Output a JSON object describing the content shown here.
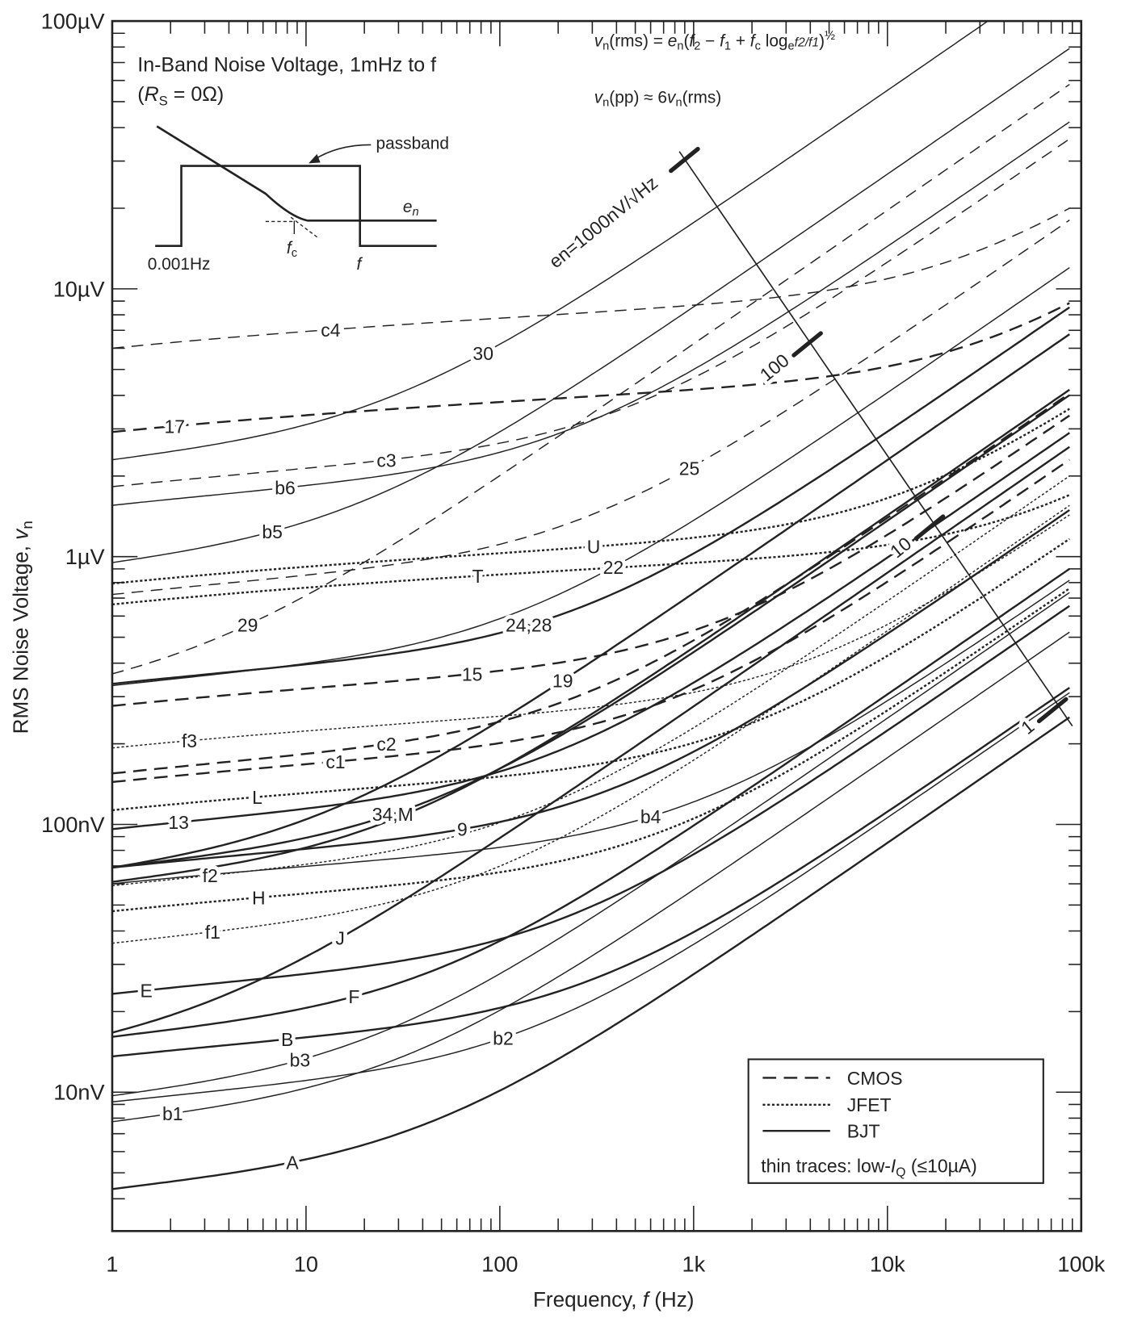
{
  "chart_data": {
    "type": "line",
    "title": "In-Band Noise Voltage, 1mHz to f",
    "subtitle_parts": [
      "(",
      "R",
      "S",
      " = 0Ω)"
    ],
    "xlabel_parts": [
      "Frequency, ",
      "f",
      "  (Hz)"
    ],
    "ylabel_parts": [
      "RMS Noise Voltage, ",
      "v",
      "n"
    ],
    "xscale": "log",
    "yscale": "log",
    "xlim_hz": [
      1,
      100000
    ],
    "ylim_nV": [
      3.03,
      100000
    ],
    "x_ticks": [
      {
        "v": 1,
        "label": "1"
      },
      {
        "v": 10,
        "label": "10"
      },
      {
        "v": 100,
        "label": "100"
      },
      {
        "v": 1000,
        "label": "1k"
      },
      {
        "v": 10000,
        "label": "10k"
      },
      {
        "v": 100000,
        "label": "100k"
      }
    ],
    "y_ticks": [
      {
        "v": 100000,
        "label": "100µV"
      },
      {
        "v": 10000,
        "label": "10µV"
      },
      {
        "v": 1000,
        "label": "1µV"
      },
      {
        "v": 100,
        "label": "100nV"
      },
      {
        "v": 10,
        "label": "10nV"
      }
    ],
    "model": "vn^2 = A*(f-0.001) + B*ln(f/0.001), fitted through the two anchor points [f_Hz, vn_nV]",
    "series": [
      {
        "name": "c4",
        "tech": "CMOS",
        "thin": true,
        "anchors": [
          [
            1,
            6000
          ],
          [
            87000,
            20000
          ]
        ]
      },
      {
        "name": "17",
        "tech": "CMOS",
        "thin": false,
        "anchors": [
          [
            1,
            2920
          ],
          [
            87000,
            8850
          ]
        ]
      },
      {
        "name": "c3",
        "tech": "CMOS",
        "thin": true,
        "anchors": [
          [
            1,
            1825
          ],
          [
            87000,
            36300
          ]
        ]
      },
      {
        "name": "29",
        "tech": "CMOS",
        "thin": true,
        "anchors": [
          [
            1,
            365
          ],
          [
            87000,
            58000
          ]
        ]
      },
      {
        "name": "25",
        "tech": "CMOS",
        "thin": true,
        "anchors": [
          [
            1,
            722
          ],
          [
            950,
            2140
          ]
        ]
      },
      {
        "name": "15",
        "tech": "CMOS",
        "thin": false,
        "anchors": [
          [
            1,
            277
          ],
          [
            72,
            365
          ]
        ]
      },
      {
        "name": "c2",
        "tech": "CMOS",
        "thin": false,
        "anchors": [
          [
            1,
            155
          ],
          [
            26,
            200
          ]
        ]
      },
      {
        "name": "c1",
        "tech": "CMOS",
        "thin": false,
        "anchors": [
          [
            1,
            144
          ],
          [
            87000,
            2300
          ]
        ]
      },
      {
        "name": "U",
        "tech": "JFET",
        "thin": false,
        "anchors": [
          [
            1,
            793
          ],
          [
            305,
            1090
          ]
        ]
      },
      {
        "name": "T",
        "tech": "JFET",
        "thin": false,
        "anchors": [
          [
            1,
            663
          ],
          [
            87000,
            1700
          ]
        ]
      },
      {
        "name": "f3",
        "tech": "JFET",
        "thin": true,
        "anchors": [
          [
            1,
            193
          ],
          [
            110,
            255
          ]
        ]
      },
      {
        "name": "L",
        "tech": "JFET",
        "thin": false,
        "anchors": [
          [
            1,
            113
          ],
          [
            110,
            152
          ]
        ]
      },
      {
        "name": "f2",
        "tech": "JFET",
        "thin": true,
        "anchors": [
          [
            1,
            59
          ],
          [
            87000,
            2000
          ]
        ]
      },
      {
        "name": "H",
        "tech": "JFET",
        "thin": false,
        "anchors": [
          [
            1,
            47.4
          ],
          [
            110,
            67
          ]
        ]
      },
      {
        "name": "f1",
        "tech": "JFET",
        "thin": true,
        "anchors": [
          [
            1,
            36
          ],
          [
            31,
            52.5
          ]
        ]
      },
      {
        "name": "30",
        "tech": "BJT",
        "thin": true,
        "anchors": [
          [
            1,
            2300
          ],
          [
            33000,
            100000
          ]
        ]
      },
      {
        "name": "b6",
        "tech": "BJT",
        "thin": true,
        "anchors": [
          [
            1,
            1555
          ],
          [
            87000,
            42000
          ]
        ]
      },
      {
        "name": "b5",
        "tech": "BJT",
        "thin": true,
        "anchors": [
          [
            1,
            950
          ],
          [
            87000,
            79000
          ]
        ]
      },
      {
        "name": "24,28",
        "tech": "BJT",
        "thin": false,
        "anchors": [
          [
            1,
            335
          ],
          [
            87000,
            8530
          ]
        ]
      },
      {
        "name": "22",
        "tech": "BJT",
        "thin": true,
        "anchors": [
          [
            1,
            330
          ],
          [
            87000,
            12000
          ]
        ]
      },
      {
        "name": "19",
        "tech": "BJT",
        "thin": false,
        "anchors": [
          [
            1,
            69
          ],
          [
            110,
            255
          ]
        ]
      },
      {
        "name": "9",
        "tech": "BJT",
        "thin": false,
        "anchors": [
          [
            1,
            69
          ],
          [
            64,
            96
          ]
        ]
      },
      {
        "name": "13",
        "tech": "BJT",
        "thin": false,
        "anchors": [
          [
            1,
            96
          ],
          [
            110,
            161
          ]
        ]
      },
      {
        "name": "34,M",
        "tech": "BJT",
        "thin": false,
        "anchors": [
          [
            1,
            69
          ],
          [
            106,
            165
          ]
        ]
      },
      {
        "name": "J",
        "tech": "BJT",
        "thin": false,
        "anchors": [
          [
            1,
            16.7
          ],
          [
            55,
            67
          ]
        ]
      },
      {
        "name": "E",
        "tech": "BJT",
        "thin": false,
        "anchors": [
          [
            1,
            23.3
          ],
          [
            110,
            38
          ]
        ]
      },
      {
        "name": "F",
        "tech": "BJT",
        "thin": false,
        "anchors": [
          [
            1,
            16.1
          ],
          [
            110,
            38
          ]
        ]
      },
      {
        "name": "B",
        "tech": "BJT",
        "thin": false,
        "anchors": [
          [
            1,
            13.6
          ],
          [
            110,
            21
          ]
        ]
      },
      {
        "name": "b3",
        "tech": "BJT",
        "thin": true,
        "anchors": [
          [
            1,
            9.7
          ],
          [
            110,
            28.8
          ]
        ]
      },
      {
        "name": "b1",
        "tech": "BJT",
        "thin": true,
        "anchors": [
          [
            1,
            7.76
          ],
          [
            110,
            21
          ]
        ]
      },
      {
        "name": "b2",
        "tech": "BJT",
        "thin": true,
        "anchors": [
          [
            1,
            9.2
          ],
          [
            100,
            15.8
          ]
        ]
      },
      {
        "name": "A",
        "tech": "BJT",
        "thin": false,
        "anchors": [
          [
            1,
            4.35
          ],
          [
            110,
            10.5
          ]
        ]
      },
      {
        "name": "b4",
        "tech": "BJT",
        "thin": true,
        "anchors": [
          [
            1,
            60
          ],
          [
            600,
            107
          ]
        ]
      },
      {
        "name": "",
        "tech": "BJT",
        "thin": false,
        "anchors": [
          [
            1,
            61
          ],
          [
            87000,
            4200
          ]
        ]
      }
    ],
    "reference_line": {
      "description_label": "en=1000nV/√Hz",
      "marks": [
        {
          "en": 1000,
          "f": 896,
          "vn": 30300,
          "label": "en=1000nV/√Hz"
        },
        {
          "en": 100,
          "f": 3860,
          "vn": 6210,
          "label": "100"
        },
        {
          "en": 10,
          "f": 16500,
          "vn": 1285,
          "label": "10"
        },
        {
          "en": 1,
          "f": 71100,
          "vn": 267,
          "label": "1"
        }
      ],
      "end": {
        "f": 90000,
        "vn": 233
      }
    },
    "legend": {
      "placement": "bottom-right",
      "entries": [
        {
          "label": "CMOS",
          "style": "dashed"
        },
        {
          "label": "JFET",
          "style": "dotted"
        },
        {
          "label": "BJT",
          "style": "solid"
        }
      ],
      "note_parts": [
        "thin traces: low-",
        "I",
        "Q",
        " (≤10µA)"
      ]
    },
    "inset": {
      "passband_label": "passband",
      "en_label": [
        "e",
        "n"
      ],
      "fc_label": [
        "f",
        "c"
      ],
      "low_label": "0.001Hz",
      "f_label": "f"
    },
    "formula1": [
      "v",
      "n",
      "(rms) = ",
      "e",
      "n",
      "(",
      "f",
      "2",
      " − ",
      "f",
      "1",
      " + ",
      "f",
      "c",
      " log",
      "e",
      "f2/f1",
      ")",
      "½"
    ],
    "formula2": [
      "v",
      "n",
      "(pp) ≈ 6",
      "v",
      "n",
      "(rms)"
    ],
    "colors": {
      "ink": "#222222",
      "background": "#ffffff"
    }
  }
}
